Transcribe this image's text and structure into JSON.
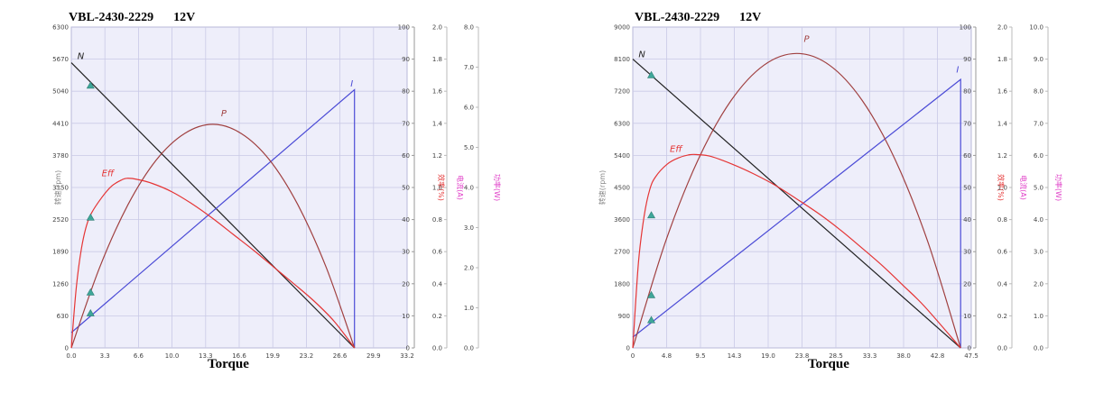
{
  "colors": {
    "plot_bg": "#eeeefa",
    "grid": "#c9c9e6",
    "speed": "#222222",
    "current": "#4b4bd6",
    "power": "#a04040",
    "efficiency": "#e53535",
    "marker": "#3fa79a",
    "axis_pink": "#e040c8"
  },
  "chart_data": [
    {
      "type": "line",
      "title": "VBL-2430-2229",
      "voltage": "12V",
      "xlabel": "Torque",
      "xlim": [
        0,
        33.2
      ],
      "x_ticks": [
        "0.0",
        "3.3",
        "6.6",
        "10.0",
        "13.3",
        "16.6",
        "19.9",
        "23.2",
        "26.6",
        "29.9",
        "33.2"
      ],
      "axes": [
        {
          "name": "speed",
          "label": "转速(rpm)",
          "color": "#888888",
          "min": 0,
          "max": 6300,
          "ticks": [
            "0",
            "630",
            "1260",
            "1890",
            "2520",
            "3150",
            "3780",
            "4410",
            "5040",
            "5670",
            "6300"
          ]
        },
        {
          "name": "efficiency",
          "label": "效率(%)",
          "color": "#e53535",
          "min": 0,
          "max": 100,
          "ticks": [
            "0",
            "10",
            "20",
            "30",
            "40",
            "50",
            "60",
            "70",
            "80",
            "90",
            "100"
          ]
        },
        {
          "name": "current",
          "label": "电流(A)",
          "color": "#e040c8",
          "min": 0,
          "max": 2.0,
          "ticks": [
            "0.0",
            "0.2",
            "0.4",
            "0.6",
            "0.8",
            "1.0",
            "1.2",
            "1.4",
            "1.6",
            "1.8",
            "2.0"
          ]
        },
        {
          "name": "power",
          "label": "功率(W)",
          "color": "#e040c8",
          "min": 0,
          "max": 8.0,
          "ticks": [
            "0.0",
            "1.0",
            "2.0",
            "3.0",
            "4.0",
            "5.0",
            "6.0",
            "7.0",
            "8.0"
          ]
        }
      ],
      "series": [
        {
          "name": "N",
          "axis": "speed",
          "color": "#222222",
          "x": [
            0,
            28
          ],
          "y": [
            5600,
            0
          ]
        },
        {
          "name": "I",
          "axis": "speed",
          "color": "#4b4bd6",
          "x": [
            0,
            28,
            28
          ],
          "y": [
            300,
            5070,
            0
          ]
        },
        {
          "name": "P",
          "axis": "speed",
          "color": "#a04040",
          "x": [
            0,
            2.8,
            5.6,
            8.4,
            11.2,
            14,
            16.8,
            19.6,
            22.4,
            25.2,
            28
          ],
          "y": [
            0,
            1580,
            2810,
            3690,
            4210,
            4390,
            4210,
            3690,
            2810,
            1580,
            0
          ]
        },
        {
          "name": "Eff",
          "axis": "speed",
          "color": "#e53535",
          "x": [
            0,
            0.5,
            1,
            1.5,
            2,
            3,
            4,
            5,
            5.5,
            6.5,
            8,
            10,
            12,
            14,
            16,
            18,
            20,
            22,
            24,
            26,
            28
          ],
          "y": [
            0,
            1200,
            1950,
            2400,
            2650,
            2950,
            3180,
            3300,
            3330,
            3310,
            3230,
            3060,
            2820,
            2540,
            2230,
            1920,
            1590,
            1260,
            920,
            520,
            0
          ]
        }
      ],
      "markers": {
        "x": 1.9,
        "y": [
          5150,
          2560,
          1090,
          680
        ]
      },
      "labels": [
        {
          "text": "N",
          "x": 0.6,
          "y": 5670
        },
        {
          "text": "I",
          "x": 27.6,
          "y": 5130
        },
        {
          "text": "P",
          "x": 14.8,
          "y": 4550
        },
        {
          "text": "Eff",
          "x": 3.0,
          "y": 3370
        }
      ]
    },
    {
      "type": "line",
      "title": "VBL-2430-2229",
      "voltage": "12V",
      "xlabel": "Torque",
      "xlim": [
        0,
        47.5
      ],
      "x_ticks": [
        "0",
        "4.8",
        "9.5",
        "14.3",
        "19.0",
        "23.8",
        "28.5",
        "33.3",
        "38.0",
        "42.8",
        "47.5"
      ],
      "axes": [
        {
          "name": "speed",
          "label": "转速(rpm)",
          "color": "#888888",
          "min": 0,
          "max": 9000,
          "ticks": [
            "0",
            "900",
            "1800",
            "2700",
            "3600",
            "4500",
            "5400",
            "6300",
            "7200",
            "8100",
            "9000"
          ]
        },
        {
          "name": "efficiency",
          "label": "效率(%)",
          "color": "#e53535",
          "min": 0,
          "max": 100,
          "ticks": [
            "0",
            "10",
            "20",
            "30",
            "40",
            "50",
            "60",
            "70",
            "80",
            "90",
            "100"
          ]
        },
        {
          "name": "current",
          "label": "电流(A)",
          "color": "#e040c8",
          "min": 0,
          "max": 2.0,
          "ticks": [
            "0.0",
            "0.2",
            "0.4",
            "0.6",
            "0.8",
            "1.0",
            "1.2",
            "1.4",
            "1.6",
            "1.8",
            "2.0"
          ]
        },
        {
          "name": "power",
          "label": "功率(W)",
          "color": "#e040c8",
          "min": 0,
          "max": 10.0,
          "ticks": [
            "0.0",
            "1.0",
            "2.0",
            "3.0",
            "4.0",
            "5.0",
            "6.0",
            "7.0",
            "8.0",
            "9.0",
            "10.0"
          ]
        }
      ],
      "series": [
        {
          "name": "N",
          "axis": "speed",
          "color": "#222222",
          "x": [
            0,
            46
          ],
          "y": [
            8100,
            0
          ]
        },
        {
          "name": "I",
          "axis": "speed",
          "color": "#4b4bd6",
          "x": [
            0,
            46,
            46
          ],
          "y": [
            300,
            7530,
            0
          ]
        },
        {
          "name": "P",
          "axis": "speed",
          "color": "#a04040",
          "x": [
            0,
            4.6,
            9.2,
            13.8,
            18.4,
            23,
            27.6,
            32.2,
            36.8,
            41.4,
            46
          ],
          "y": [
            0,
            2980,
            5290,
            6940,
            7930,
            8260,
            7930,
            6940,
            5290,
            2980,
            0
          ]
        },
        {
          "name": "Eff",
          "axis": "speed",
          "color": "#e53535",
          "x": [
            0,
            0.8,
            1.6,
            2.4,
            3.2,
            4.8,
            6.4,
            8,
            9.2,
            11,
            14,
            17,
            20,
            23,
            26,
            29,
            32,
            35,
            38,
            41,
            46
          ],
          "y": [
            0,
            2400,
            3700,
            4450,
            4800,
            5150,
            5330,
            5420,
            5420,
            5370,
            5150,
            4880,
            4560,
            4180,
            3780,
            3330,
            2830,
            2310,
            1740,
            1150,
            0
          ]
        }
      ],
      "markers": {
        "x": 2.6,
        "y": [
          7650,
          3720,
          1480,
          780
        ]
      },
      "labels": [
        {
          "text": "N",
          "x": 0.8,
          "y": 8150
        },
        {
          "text": "I",
          "x": 45.4,
          "y": 7720
        },
        {
          "text": "P",
          "x": 24.0,
          "y": 8580
        },
        {
          "text": "Eff",
          "x": 5.2,
          "y": 5500
        }
      ]
    }
  ]
}
